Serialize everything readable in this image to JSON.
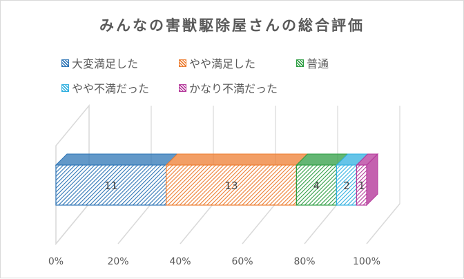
{
  "chart_data": {
    "type": "bar",
    "orientation": "horizontal",
    "stacked": "100%",
    "title": "みんなの害獣駆除屋さんの総合評価",
    "series": [
      {
        "name": "大変満足した",
        "values": [
          11
        ],
        "color": "#2e75b6"
      },
      {
        "name": "やや満足した",
        "values": [
          13
        ],
        "color": "#ed7d31"
      },
      {
        "name": "普通",
        "values": [
          4
        ],
        "color": "#2f9e44"
      },
      {
        "name": "やや不満だった",
        "values": [
          2
        ],
        "color": "#31b0e0"
      },
      {
        "name": "かなり不満だった",
        "values": [
          1
        ],
        "color": "#b5399b"
      }
    ],
    "x_ticks": [
      "0%",
      "20%",
      "40%",
      "60%",
      "80%",
      "100%"
    ],
    "xlim": [
      0,
      1
    ],
    "legend_position": "top",
    "grid": true
  }
}
